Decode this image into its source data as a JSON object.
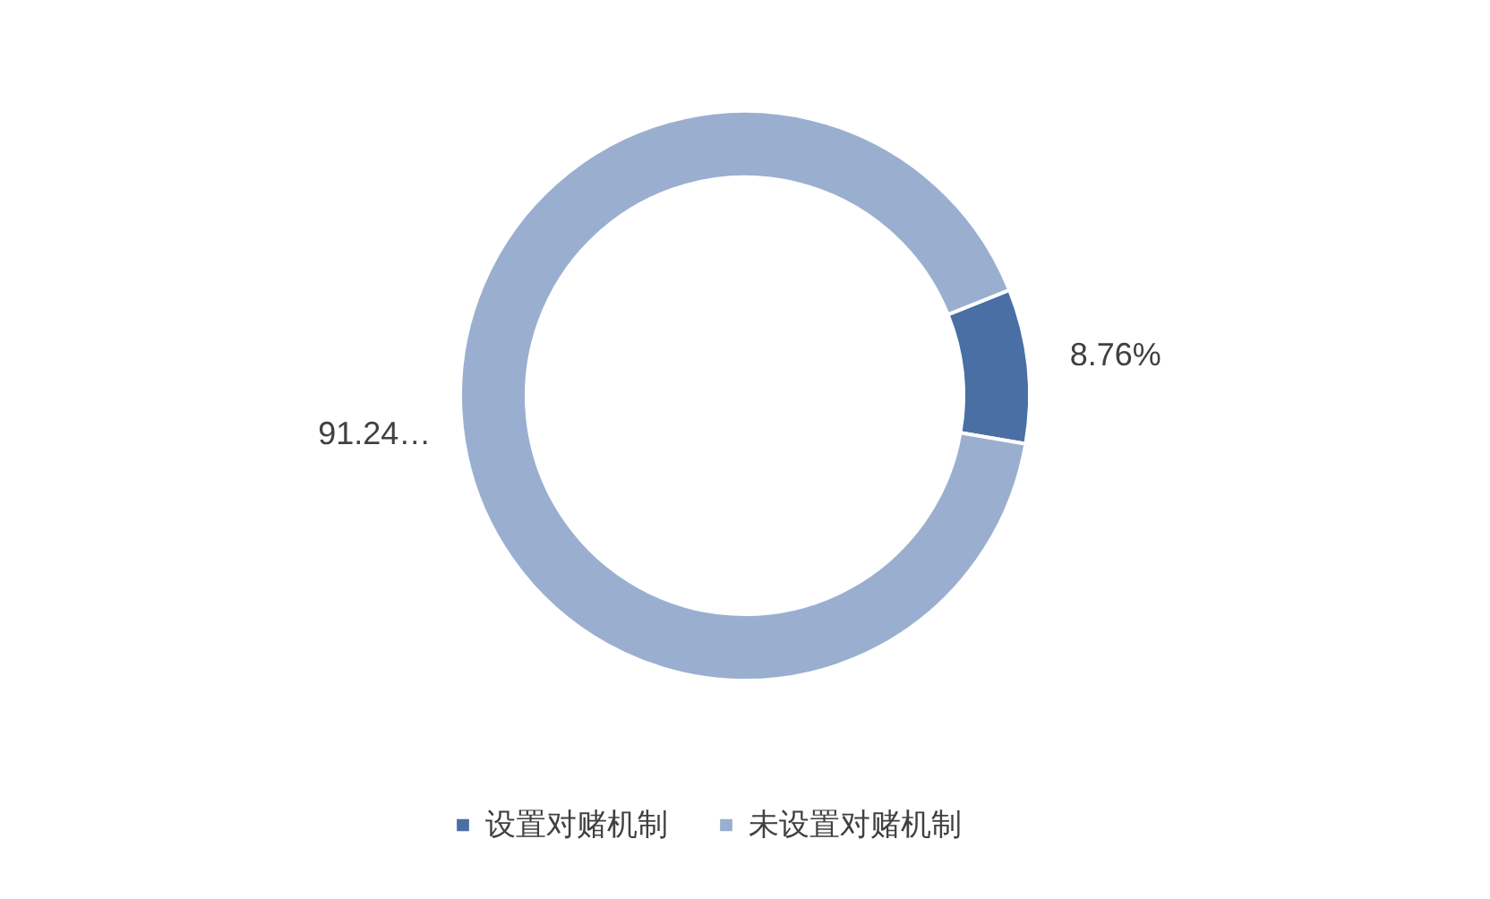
{
  "chart_data": {
    "type": "donut",
    "categories": [
      "设置对赌机制",
      "未设置对赌机制"
    ],
    "values": [
      8.76,
      91.24
    ],
    "colors": [
      "#4a6fa5",
      "#9aafd0"
    ],
    "value_labels": [
      "8.76%",
      "91.24…"
    ],
    "legend": "bottom"
  }
}
